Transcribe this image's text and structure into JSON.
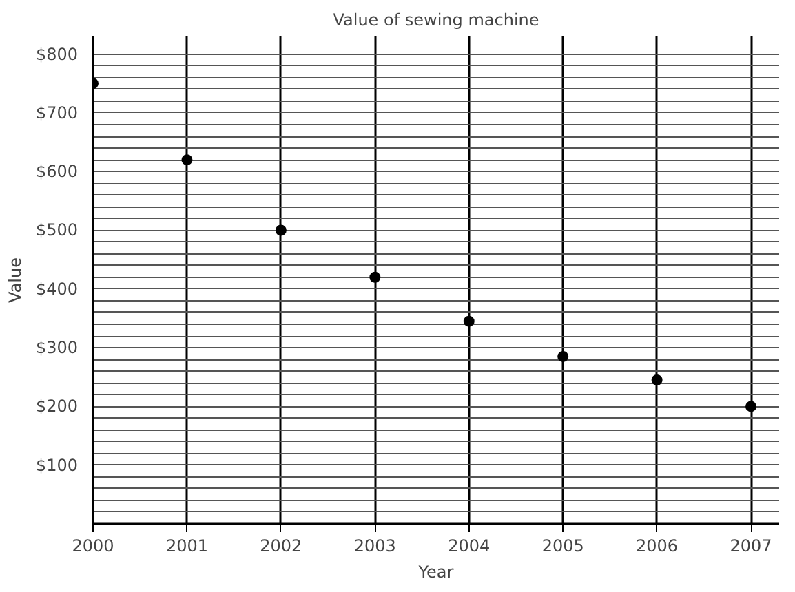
{
  "chart_data": {
    "type": "scatter",
    "title": "Value of sewing machine",
    "xlabel": "Year",
    "ylabel": "Value",
    "x": [
      2000,
      2001,
      2002,
      2003,
      2004,
      2005,
      2006,
      2007
    ],
    "series": [
      {
        "color": "#000000",
        "values": [
          750,
          620,
          500,
          420,
          345,
          285,
          245,
          200
        ]
      }
    ],
    "marker": "circle",
    "grid": true,
    "xlim": [
      2000,
      2007.3
    ],
    "xticks": [
      2000,
      2001,
      2002,
      2003,
      2004,
      2005,
      2006,
      2007
    ],
    "ylim": [
      0,
      830
    ],
    "yticks": [
      {
        "value": 20,
        "label": null
      },
      {
        "value": 40,
        "label": null
      },
      {
        "value": 60,
        "label": null
      },
      {
        "value": 80,
        "label": null
      },
      {
        "value": 100,
        "label": "$100"
      },
      {
        "value": 120,
        "label": null
      },
      {
        "value": 140,
        "label": null
      },
      {
        "value": 160,
        "label": null
      },
      {
        "value": 180,
        "label": null
      },
      {
        "value": 200,
        "label": "$200"
      },
      {
        "value": 220,
        "label": null
      },
      {
        "value": 240,
        "label": null
      },
      {
        "value": 260,
        "label": null
      },
      {
        "value": 280,
        "label": null
      },
      {
        "value": 300,
        "label": "$300"
      },
      {
        "value": 320,
        "label": null
      },
      {
        "value": 340,
        "label": null
      },
      {
        "value": 360,
        "label": null
      },
      {
        "value": 380,
        "label": null
      },
      {
        "value": 400,
        "label": "$400"
      },
      {
        "value": 420,
        "label": null
      },
      {
        "value": 440,
        "label": null
      },
      {
        "value": 460,
        "label": null
      },
      {
        "value": 480,
        "label": null
      },
      {
        "value": 500,
        "label": "$500"
      },
      {
        "value": 520,
        "label": null
      },
      {
        "value": 540,
        "label": null
      },
      {
        "value": 560,
        "label": null
      },
      {
        "value": 580,
        "label": null
      },
      {
        "value": 600,
        "label": "$600"
      },
      {
        "value": 620,
        "label": null
      },
      {
        "value": 640,
        "label": null
      },
      {
        "value": 660,
        "label": null
      },
      {
        "value": 680,
        "label": null
      },
      {
        "value": 700,
        "label": "$700"
      },
      {
        "value": 720,
        "label": null
      },
      {
        "value": 740,
        "label": null
      },
      {
        "value": 760,
        "label": null
      },
      {
        "value": 780,
        "label": null
      },
      {
        "value": 800,
        "label": "$800"
      }
    ]
  }
}
